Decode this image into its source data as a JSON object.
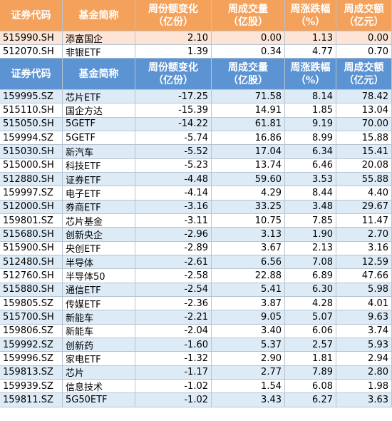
{
  "sections": [
    {
      "header": [
        [
          "证券代码"
        ],
        [
          "基金简称"
        ],
        [
          "周份额变化",
          "（亿份）"
        ],
        [
          "周成交量",
          "（亿股）"
        ],
        [
          "周涨跌幅",
          "（%）"
        ],
        [
          "周成交额",
          "（亿元）"
        ]
      ],
      "rows": [
        [
          "515990.SH",
          "添富国企",
          "2.10",
          "0.00",
          "1.13",
          "0.00"
        ],
        [
          "512070.SH",
          "非银ETF",
          "1.39",
          "0.34",
          "4.77",
          "0.70"
        ]
      ]
    },
    {
      "header": [
        [
          "证券代码"
        ],
        [
          "基金简称"
        ],
        [
          "周份额变化",
          "（亿份）"
        ],
        [
          "周成交量",
          "（亿股）"
        ],
        [
          "周涨跌幅",
          "（%）"
        ],
        [
          "周成交额",
          "（亿元）"
        ]
      ],
      "rows": [
        [
          "159995.SZ",
          "芯片ETF",
          "-17.25",
          "71.58",
          "8.14",
          "78.42"
        ],
        [
          "515110.SH",
          "国企方达",
          "-15.39",
          "14.91",
          "1.85",
          "13.04"
        ],
        [
          "515050.SH",
          "5GETF",
          "-14.22",
          "61.81",
          "9.19",
          "70.00"
        ],
        [
          "159994.SZ",
          "5GETF",
          "-5.74",
          "16.86",
          "8.99",
          "15.88"
        ],
        [
          "515030.SH",
          "新汽车",
          "-5.52",
          "17.04",
          "6.34",
          "15.41"
        ],
        [
          "515000.SH",
          "科技ETF",
          "-5.23",
          "13.74",
          "6.46",
          "20.08"
        ],
        [
          "512880.SH",
          "证券ETF",
          "-4.48",
          "59.60",
          "3.53",
          "55.88"
        ],
        [
          "159997.SZ",
          "电子ETF",
          "-4.14",
          "4.29",
          "8.44",
          "4.40"
        ],
        [
          "512000.SH",
          "券商ETF",
          "-3.16",
          "33.25",
          "3.48",
          "29.67"
        ],
        [
          "159801.SZ",
          "芯片基金",
          "-3.11",
          "10.75",
          "7.85",
          "11.47"
        ],
        [
          "515680.SH",
          "创新央企",
          "-2.96",
          "3.13",
          "1.90",
          "2.70"
        ],
        [
          "515900.SH",
          "央创ETF",
          "-2.89",
          "3.67",
          "2.13",
          "3.16"
        ],
        [
          "512480.SH",
          "半导体",
          "-2.61",
          "6.56",
          "7.08",
          "12.59"
        ],
        [
          "512760.SH",
          "半导体50",
          "-2.58",
          "22.88",
          "6.89",
          "47.66"
        ],
        [
          "515880.SH",
          "通信ETF",
          "-2.54",
          "5.41",
          "6.30",
          "5.98"
        ],
        [
          "159805.SZ",
          "传媒ETF",
          "-2.36",
          "3.87",
          "4.28",
          "4.01"
        ],
        [
          "515700.SH",
          "新能车",
          "-2.21",
          "9.05",
          "5.07",
          "9.63"
        ],
        [
          "159806.SZ",
          "新能车",
          "-2.04",
          "3.40",
          "6.06",
          "3.74"
        ],
        [
          "159992.SZ",
          "创新药",
          "-1.60",
          "5.37",
          "2.57",
          "5.93"
        ],
        [
          "159996.SZ",
          "家电ETF",
          "-1.32",
          "2.90",
          "1.81",
          "2.94"
        ],
        [
          "159813.SZ",
          "芯片",
          "-1.17",
          "2.77",
          "7.89",
          "2.80"
        ],
        [
          "159939.SZ",
          "信息技术",
          "-1.02",
          "1.54",
          "6.08",
          "1.98"
        ],
        [
          "159811.SZ",
          "5G50ETF",
          "-1.02",
          "3.43",
          "6.27",
          "3.63"
        ]
      ]
    }
  ]
}
